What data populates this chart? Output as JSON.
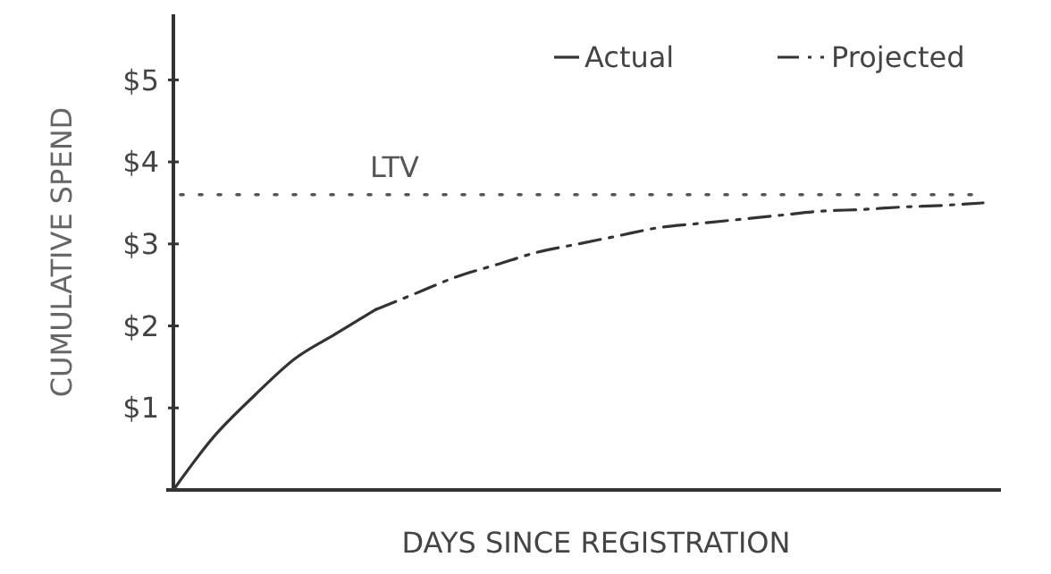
{
  "chart_data": {
    "type": "line",
    "xlabel": "DAYS SINCE REGISTRATION",
    "ylabel": "CUMULATIVE SPEND",
    "categories": [
      null,
      null,
      null,
      null,
      null,
      null,
      null,
      null,
      null,
      null,
      null,
      null,
      null,
      null,
      null,
      null,
      null,
      null,
      null,
      null,
      null
    ],
    "series": [
      {
        "name": "Actual",
        "color": "#333333",
        "line_style": "solid",
        "values": [
          0,
          0.65,
          1.15,
          1.6,
          1.9,
          2.2,
          null,
          null,
          null,
          null,
          null,
          null,
          null,
          null,
          null,
          null,
          null,
          null,
          null,
          null,
          null
        ]
      },
      {
        "name": "Projected",
        "color": "#333333",
        "line_style": "dashed",
        "values": [
          null,
          null,
          null,
          null,
          null,
          2.2,
          2.4,
          2.6,
          2.75,
          2.9,
          3.0,
          3.1,
          3.2,
          3.25,
          3.3,
          3.35,
          3.4,
          3.42,
          3.45,
          3.47,
          3.5
        ]
      }
    ],
    "ylim": [
      0,
      5.8
    ],
    "yticks": [
      {
        "value": 1,
        "label": "$1"
      },
      {
        "value": 2,
        "label": "$2"
      },
      {
        "value": 3,
        "label": "$3"
      },
      {
        "value": 4,
        "label": "$4"
      },
      {
        "value": 5,
        "label": "$5"
      }
    ],
    "ref_lines": [
      {
        "axis": "y",
        "value": 3.6,
        "label": "LTV",
        "color": "#555555",
        "line_style": "dotted"
      }
    ],
    "legend": "top right",
    "grid": false,
    "tick_labels": "y"
  }
}
